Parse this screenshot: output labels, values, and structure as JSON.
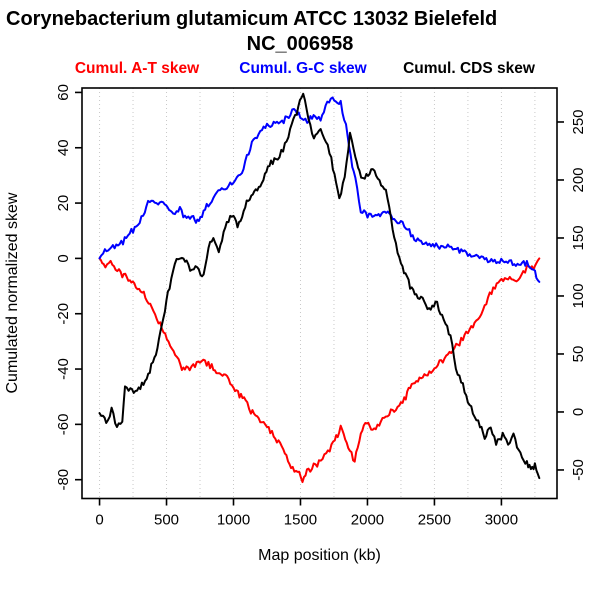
{
  "title": {
    "line1": "Corynebacterium glutamicum ATCC 13032 Bielefeld",
    "line2": "NC_006958"
  },
  "legend": [
    {
      "label": "Cumul. A-T skew",
      "color": "#ff0000"
    },
    {
      "label": "Cumul. G-C skew",
      "color": "#0000ff"
    },
    {
      "label": "Cumul. CDS skew",
      "color": "#000000"
    }
  ],
  "chart_data": {
    "type": "line",
    "title": "Corynebacterium glutamicum ATCC 13032 Bielefeld NC_006958",
    "xlabel": "Map position (kb)",
    "ylabel_left": "Cumulated normalized skew",
    "grid": "dotted-vertical",
    "grid_color": "#c8c8c8",
    "x_axis": {
      "usr": [
        -131,
        3415
      ],
      "ticks": [
        0,
        500,
        1000,
        1500,
        2000,
        2500,
        3000
      ],
      "gridlines_kb": [
        0,
        250,
        500,
        750,
        1000,
        1250,
        1500,
        1750,
        2000,
        2250,
        2500,
        2750,
        3000,
        3250
      ]
    },
    "left_axis": {
      "usr": [
        -86.8,
        61.6
      ],
      "ticks": [
        -80,
        -60,
        -40,
        -20,
        0,
        20,
        40,
        60
      ]
    },
    "right_axis": {
      "usr": [
        -74.6,
        279.3
      ],
      "ticks": [
        -50,
        0,
        50,
        100,
        150,
        200,
        250
      ]
    },
    "series": [
      {
        "name": "Cumul. A-T skew",
        "color": "#ff0000",
        "axis": "left",
        "points": [
          [
            0,
            0
          ],
          [
            30,
            -3
          ],
          [
            70,
            -1.5
          ],
          [
            120,
            -4
          ],
          [
            170,
            -5.5
          ],
          [
            260,
            -9
          ],
          [
            330,
            -13
          ],
          [
            390,
            -18
          ],
          [
            465,
            -25
          ],
          [
            540,
            -32
          ],
          [
            615,
            -40
          ],
          [
            660,
            -40
          ],
          [
            700,
            -39
          ],
          [
            775,
            -36.5
          ],
          [
            850,
            -40
          ],
          [
            940,
            -42
          ],
          [
            1000,
            -47.5
          ],
          [
            1090,
            -51
          ],
          [
            1130,
            -55.5
          ],
          [
            1200,
            -58.5
          ],
          [
            1250,
            -61
          ],
          [
            1300,
            -64
          ],
          [
            1360,
            -68
          ],
          [
            1430,
            -75
          ],
          [
            1515,
            -79.5
          ],
          [
            1560,
            -76.5
          ],
          [
            1625,
            -74.5
          ],
          [
            1665,
            -71.5
          ],
          [
            1705,
            -70
          ],
          [
            1745,
            -67
          ],
          [
            1800,
            -61.5
          ],
          [
            1845,
            -66.5
          ],
          [
            1905,
            -73.5
          ],
          [
            1950,
            -63
          ],
          [
            1995,
            -58.5
          ],
          [
            2050,
            -62
          ],
          [
            2125,
            -57.5
          ],
          [
            2200,
            -55
          ],
          [
            2275,
            -51
          ],
          [
            2330,
            -46
          ],
          [
            2400,
            -43.5
          ],
          [
            2475,
            -40.5
          ],
          [
            2550,
            -37
          ],
          [
            2625,
            -34
          ],
          [
            2700,
            -29.5
          ],
          [
            2775,
            -25
          ],
          [
            2850,
            -21
          ],
          [
            2900,
            -14
          ],
          [
            2965,
            -9
          ],
          [
            3025,
            -7
          ],
          [
            3100,
            -8
          ],
          [
            3150,
            -6
          ],
          [
            3190,
            -3.5
          ],
          [
            3240,
            -3
          ],
          [
            3283,
            0
          ]
        ]
      },
      {
        "name": "Cumul. G-C skew",
        "color": "#0000ff",
        "axis": "left",
        "points": [
          [
            0,
            0
          ],
          [
            40,
            2.5
          ],
          [
            100,
            4.5
          ],
          [
            150,
            5
          ],
          [
            200,
            7.5
          ],
          [
            250,
            10
          ],
          [
            300,
            13
          ],
          [
            375,
            21
          ],
          [
            425,
            19.5
          ],
          [
            475,
            20.5
          ],
          [
            520,
            18.5
          ],
          [
            550,
            16
          ],
          [
            600,
            17.5
          ],
          [
            650,
            14
          ],
          [
            700,
            14.5
          ],
          [
            730,
            13
          ],
          [
            800,
            18.5
          ],
          [
            875,
            23
          ],
          [
            950,
            26
          ],
          [
            1025,
            28.5
          ],
          [
            1075,
            32.5
          ],
          [
            1125,
            40
          ],
          [
            1175,
            44.5
          ],
          [
            1225,
            47.5
          ],
          [
            1275,
            48.5
          ],
          [
            1325,
            49
          ],
          [
            1375,
            50
          ],
          [
            1425,
            52.5
          ],
          [
            1465,
            54
          ],
          [
            1510,
            50
          ],
          [
            1550,
            49.5
          ],
          [
            1610,
            51
          ],
          [
            1650,
            51
          ],
          [
            1700,
            56
          ],
          [
            1740,
            58
          ],
          [
            1800,
            56
          ],
          [
            1840,
            48
          ],
          [
            1875,
            37
          ],
          [
            1910,
            28
          ],
          [
            1950,
            17.5
          ],
          [
            2000,
            16
          ],
          [
            2060,
            15
          ],
          [
            2140,
            17
          ],
          [
            2200,
            14
          ],
          [
            2250,
            12.5
          ],
          [
            2300,
            10
          ],
          [
            2350,
            7.5
          ],
          [
            2450,
            5
          ],
          [
            2550,
            4
          ],
          [
            2650,
            3.5
          ],
          [
            2700,
            3
          ],
          [
            2800,
            1
          ],
          [
            2900,
            -0.5
          ],
          [
            2950,
            -1.3
          ],
          [
            3060,
            -1
          ],
          [
            3120,
            -2.5
          ],
          [
            3190,
            -2
          ],
          [
            3240,
            -4.5
          ],
          [
            3283,
            -8.5
          ]
        ]
      },
      {
        "name": "Cumul. CDS skew",
        "color": "#000000",
        "axis": "right",
        "points": [
          [
            0,
            -1
          ],
          [
            50,
            -9.5
          ],
          [
            90,
            1.7
          ],
          [
            130,
            -13
          ],
          [
            170,
            -7
          ],
          [
            190,
            25
          ],
          [
            230,
            19
          ],
          [
            280,
            17
          ],
          [
            340,
            27.6
          ],
          [
            410,
            44.8
          ],
          [
            465,
            73
          ],
          [
            510,
            101
          ],
          [
            575,
            132.8
          ],
          [
            615,
            131
          ],
          [
            650,
            131
          ],
          [
            690,
            120.7
          ],
          [
            730,
            124
          ],
          [
            765,
            115.5
          ],
          [
            825,
            146.6
          ],
          [
            850,
            151
          ],
          [
            890,
            138
          ],
          [
            950,
            163.8
          ],
          [
            1000,
            170
          ],
          [
            1030,
            158.6
          ],
          [
            1110,
            184.5
          ],
          [
            1200,
            195.7
          ],
          [
            1280,
            215.5
          ],
          [
            1330,
            219
          ],
          [
            1370,
            226
          ],
          [
            1410,
            238.8
          ],
          [
            1460,
            256
          ],
          [
            1520,
            273.3
          ],
          [
            1560,
            251.7
          ],
          [
            1600,
            236.2
          ],
          [
            1650,
            241.4
          ],
          [
            1690,
            234.5
          ],
          [
            1730,
            217.2
          ],
          [
            1790,
            182.8
          ],
          [
            1830,
            201.7
          ],
          [
            1870,
            241.4
          ],
          [
            1910,
            219
          ],
          [
            1940,
            206.9
          ],
          [
            1980,
            200
          ],
          [
            2040,
            210.3
          ],
          [
            2090,
            198.3
          ],
          [
            2150,
            187
          ],
          [
            2200,
            150
          ],
          [
            2250,
            129.3
          ],
          [
            2330,
            105.2
          ],
          [
            2400,
            96.6
          ],
          [
            2460,
            89.7
          ],
          [
            2520,
            94
          ],
          [
            2570,
            77.6
          ],
          [
            2620,
            66.4
          ],
          [
            2660,
            37.9
          ],
          [
            2700,
            27.6
          ],
          [
            2750,
            7.8
          ],
          [
            2800,
            -2.6
          ],
          [
            2840,
            -11.2
          ],
          [
            2875,
            -21.6
          ],
          [
            2920,
            -15.5
          ],
          [
            2960,
            -28.4
          ],
          [
            3010,
            -19
          ],
          [
            3050,
            -28.4
          ],
          [
            3090,
            -20.7
          ],
          [
            3130,
            -32.8
          ],
          [
            3190,
            -44
          ],
          [
            3220,
            -50
          ],
          [
            3250,
            -46.6
          ],
          [
            3283,
            -57
          ]
        ]
      }
    ]
  }
}
